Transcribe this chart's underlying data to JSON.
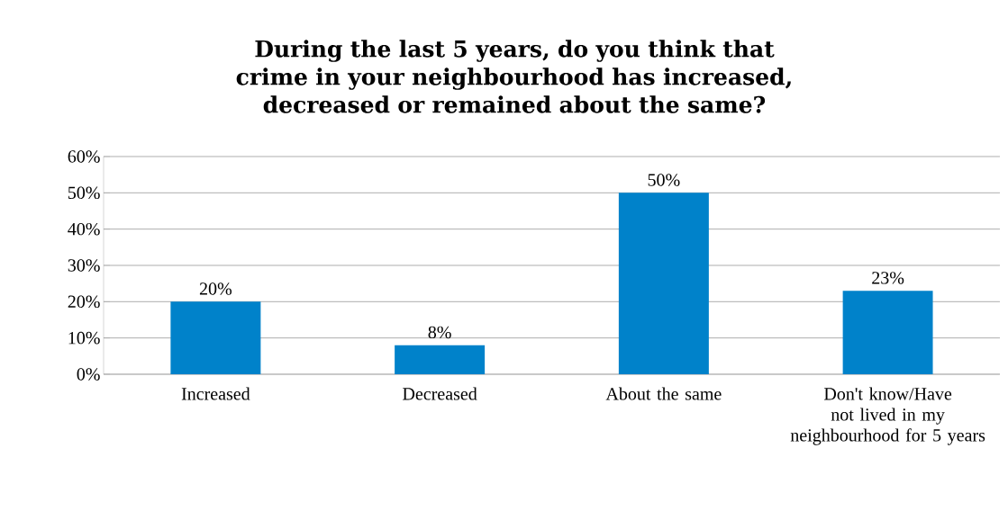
{
  "chart_data": {
    "type": "bar",
    "title": "During the last 5 years, do you think that crime in your neighbourhood has increased, decreased or remained about the same?",
    "categories": [
      "Increased",
      "Decreased",
      "About the same",
      "Don't know/Have not lived in my neighbourhood for 5 years"
    ],
    "values": [
      20,
      8,
      50,
      23
    ],
    "value_labels": [
      "20%",
      "8%",
      "50%",
      "23%"
    ],
    "color": "#0082ca",
    "ylim": [
      0,
      60
    ],
    "yticks": [
      {
        "value": 0,
        "label": "0%"
      },
      {
        "value": 10,
        "label": "10%"
      },
      {
        "value": 20,
        "label": "20%"
      },
      {
        "value": 30,
        "label": "30%"
      },
      {
        "value": 40,
        "label": "40%"
      },
      {
        "value": 50,
        "label": "50%"
      },
      {
        "value": 60,
        "label": "60%"
      }
    ],
    "grid": "y"
  }
}
